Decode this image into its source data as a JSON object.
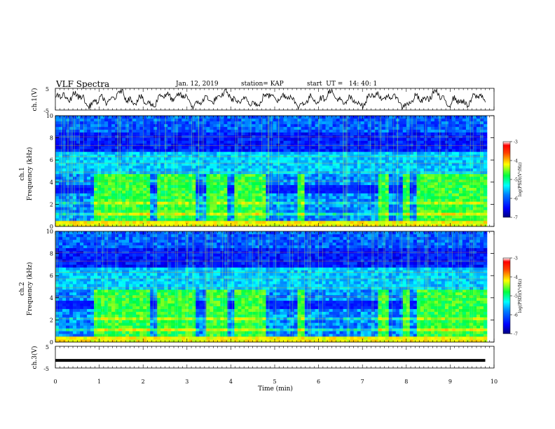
{
  "header": {
    "title": "VLF Spectra",
    "date": "Jan. 12, 2019",
    "station": "station= KAP",
    "start": "start  UT =   14: 40: 1"
  },
  "chart_data": [
    {
      "type": "line",
      "panel": "ch1-waveform",
      "ylabel": "ch.1(V)",
      "ylim": [
        -5,
        5
      ],
      "yticks": [
        "5",
        "-5"
      ],
      "xlim": [
        0,
        10
      ],
      "x_unit": "min",
      "trace": "noisy waveform oscillating mostly between -3 and 4 V, ending near -2 V at ~9.8 min"
    },
    {
      "type": "heatmap",
      "panel": "ch1-spectrogram",
      "ylabel": "ch.1\nFrequency (kHz)",
      "ylabel_lines": [
        "ch.1",
        "Frequency (kHz)"
      ],
      "ylim": [
        0,
        10
      ],
      "yticks": [
        "0",
        "2",
        "4",
        "6",
        "8",
        "10"
      ],
      "xlim": [
        0,
        10
      ],
      "colorbar": {
        "label": "log(PSD)(V²/Hz)",
        "range": [
          -7,
          -3
        ],
        "ticks": [
          "-3",
          "-4",
          "-5",
          "-6",
          "-7"
        ]
      },
      "bright_intervals_min": [
        [
          0.9,
          1.55
        ],
        [
          1.55,
          2.15
        ],
        [
          2.35,
          2.8
        ],
        [
          2.8,
          3.2
        ],
        [
          3.45,
          3.95
        ],
        [
          4.1,
          4.8
        ],
        [
          5.55,
          5.7
        ],
        [
          7.35,
          7.6
        ],
        [
          7.95,
          8.1
        ],
        [
          8.25,
          9.8
        ]
      ]
    },
    {
      "type": "heatmap",
      "panel": "ch2-spectrogram",
      "ylabel": "ch.2\nFrequency (kHz)",
      "ylabel_lines": [
        "ch.2",
        "Frequency (kHz)"
      ],
      "ylim": [
        0,
        10
      ],
      "yticks": [
        "0",
        "2",
        "4",
        "6",
        "8",
        "10"
      ],
      "xlim": [
        0,
        10
      ],
      "colorbar": {
        "label": "log(PSD)(V²/Hz)",
        "range": [
          -7,
          -3
        ],
        "ticks": [
          "-3",
          "-4",
          "-5",
          "-6",
          "-7"
        ]
      },
      "bright_intervals_min": [
        [
          0.9,
          1.55
        ],
        [
          1.55,
          2.15
        ],
        [
          2.35,
          2.8
        ],
        [
          2.8,
          3.2
        ],
        [
          3.45,
          3.95
        ],
        [
          4.1,
          4.8
        ],
        [
          5.55,
          5.7
        ],
        [
          7.35,
          7.6
        ],
        [
          7.95,
          8.1
        ],
        [
          8.25,
          9.8
        ]
      ]
    },
    {
      "type": "line",
      "panel": "ch3-waveform",
      "ylabel": "ch.3(V)",
      "ylim": [
        -5,
        5
      ],
      "yticks": [
        "5",
        "-5"
      ],
      "xlim": [
        0,
        10
      ],
      "series": [
        {
          "x": [
            0,
            9.8
          ],
          "y": [
            -1.5,
            -1.5
          ]
        }
      ]
    }
  ],
  "xaxis": {
    "label": "Time (min)",
    "ticks": [
      "0",
      "1",
      "2",
      "3",
      "4",
      "5",
      "6",
      "7",
      "8",
      "9",
      "10"
    ]
  }
}
